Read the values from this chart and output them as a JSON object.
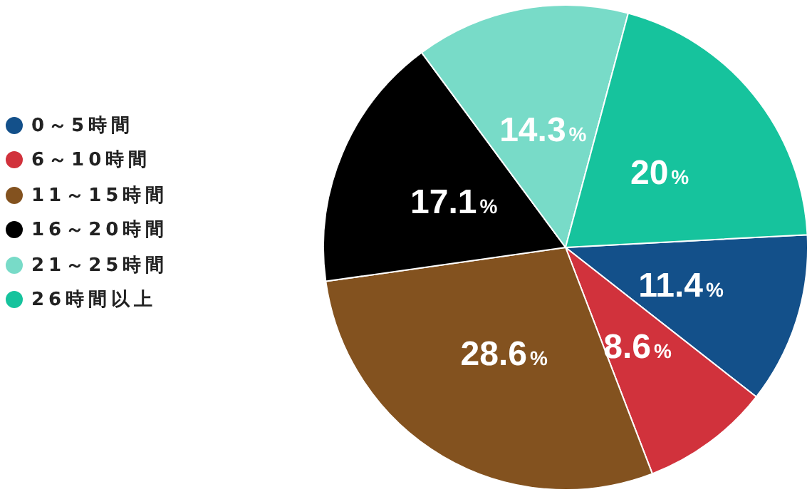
{
  "chart_data": {
    "type": "pie",
    "categories": [
      "0～5時間",
      "6～10時間",
      "11～15時間",
      "16～20時間",
      "21～25時間",
      "26時間以上"
    ],
    "values": [
      11.4,
      8.6,
      28.6,
      17.1,
      14.3,
      20
    ],
    "colors": [
      "#13508a",
      "#d1323c",
      "#83521f",
      "#000000",
      "#78dbc8",
      "#16c39d"
    ],
    "value_labels": [
      "11.4%",
      "8.6%",
      "28.6%",
      "17.1%",
      "14.3%",
      "20%"
    ],
    "legend": "left"
  }
}
